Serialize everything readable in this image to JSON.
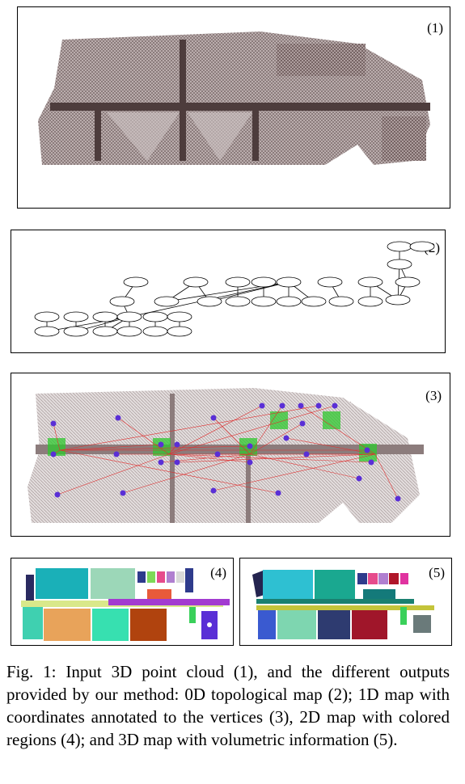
{
  "panels": [
    {
      "id": "p1",
      "label": "(1)"
    },
    {
      "id": "p2",
      "label": "(2)"
    },
    {
      "id": "p3",
      "label": "(3)"
    },
    {
      "id": "p4",
      "label": "(4)"
    },
    {
      "id": "p5",
      "label": "(5)"
    }
  ],
  "caption": "Fig. 1: Input 3D point cloud (1), and the different outputs provided by our method: 0D topological map (2); 1D map with coordinates annotated to the vertices (3), 2D map with colored regions (4); and 3D map with volumetric information (5).",
  "colors": {
    "point_cloud": "#6b5a5a",
    "vertex": "#5a2fd6",
    "edge": "#e03030",
    "seam": "#2ec82e"
  }
}
